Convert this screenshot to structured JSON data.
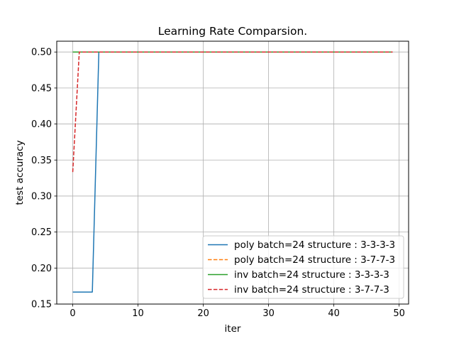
{
  "chart_data": {
    "type": "line",
    "title": "Learning Rate Comparsion.",
    "xlabel": "iter",
    "ylabel": "test accuracy",
    "xlim": [
      -2.45,
      51.45
    ],
    "ylim": [
      0.15,
      0.515
    ],
    "xticks": [
      0,
      10,
      20,
      30,
      40,
      50
    ],
    "yticks": [
      0.15,
      0.2,
      0.25,
      0.3,
      0.35,
      0.4,
      0.45,
      0.5
    ],
    "grid": true,
    "legend_position": "lower right",
    "series": [
      {
        "name": "poly batch=24 structure : 3-3-3-3",
        "color": "#1f77b4",
        "dash": "solid",
        "x": [
          0,
          1,
          2,
          3,
          4,
          49
        ],
        "y": [
          0.1667,
          0.1667,
          0.1667,
          0.1667,
          0.5,
          0.5
        ]
      },
      {
        "name": "poly batch=24 structure : 3-7-7-3",
        "color": "#ff7f0e",
        "dash": "dashed",
        "x": [
          0,
          49
        ],
        "y": [
          0.5,
          0.5
        ]
      },
      {
        "name": "inv batch=24 structure : 3-3-3-3",
        "color": "#2ca02c",
        "dash": "solid",
        "x": [
          0,
          49
        ],
        "y": [
          0.5,
          0.5
        ]
      },
      {
        "name": "inv batch=24 structure : 3-7-7-3",
        "color": "#d62728",
        "dash": "dashed",
        "x": [
          0,
          1,
          49
        ],
        "y": [
          0.3333,
          0.5,
          0.5
        ]
      }
    ]
  }
}
